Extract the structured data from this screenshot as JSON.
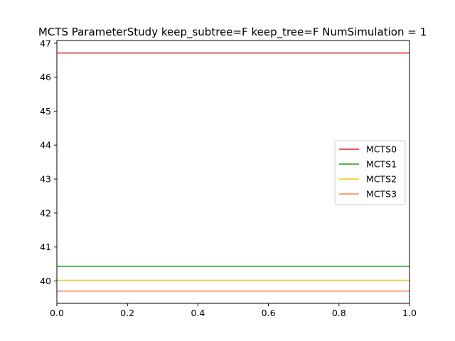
{
  "chart_data": {
    "type": "line",
    "title": "MCTS ParameterStudy keep_subtree=F keep_tree=F NumSimulation = 1",
    "xlabel": "",
    "ylabel": "",
    "xlim": [
      0.0,
      1.0
    ],
    "ylim": [
      39.34,
      47.08
    ],
    "x_ticks": [
      "0.0",
      "0.2",
      "0.4",
      "0.6",
      "0.8",
      "1.0"
    ],
    "y_ticks": [
      "40",
      "41",
      "42",
      "43",
      "44",
      "45",
      "46",
      "47"
    ],
    "grid": false,
    "legend_position": "center-right",
    "series": [
      {
        "name": "MCTS0",
        "color": "#d62728",
        "x": [
          0.0,
          1.0
        ],
        "values": [
          46.71,
          46.71
        ]
      },
      {
        "name": "MCTS1",
        "color": "#1a9e1a",
        "x": [
          0.0,
          1.0
        ],
        "values": [
          40.43,
          40.43
        ]
      },
      {
        "name": "MCTS2",
        "color": "#f0c419",
        "x": [
          0.0,
          1.0
        ],
        "values": [
          40.02,
          40.02
        ]
      },
      {
        "name": "MCTS3",
        "color": "#ff7f50",
        "x": [
          0.0,
          1.0
        ],
        "values": [
          39.7,
          39.7
        ]
      }
    ]
  }
}
